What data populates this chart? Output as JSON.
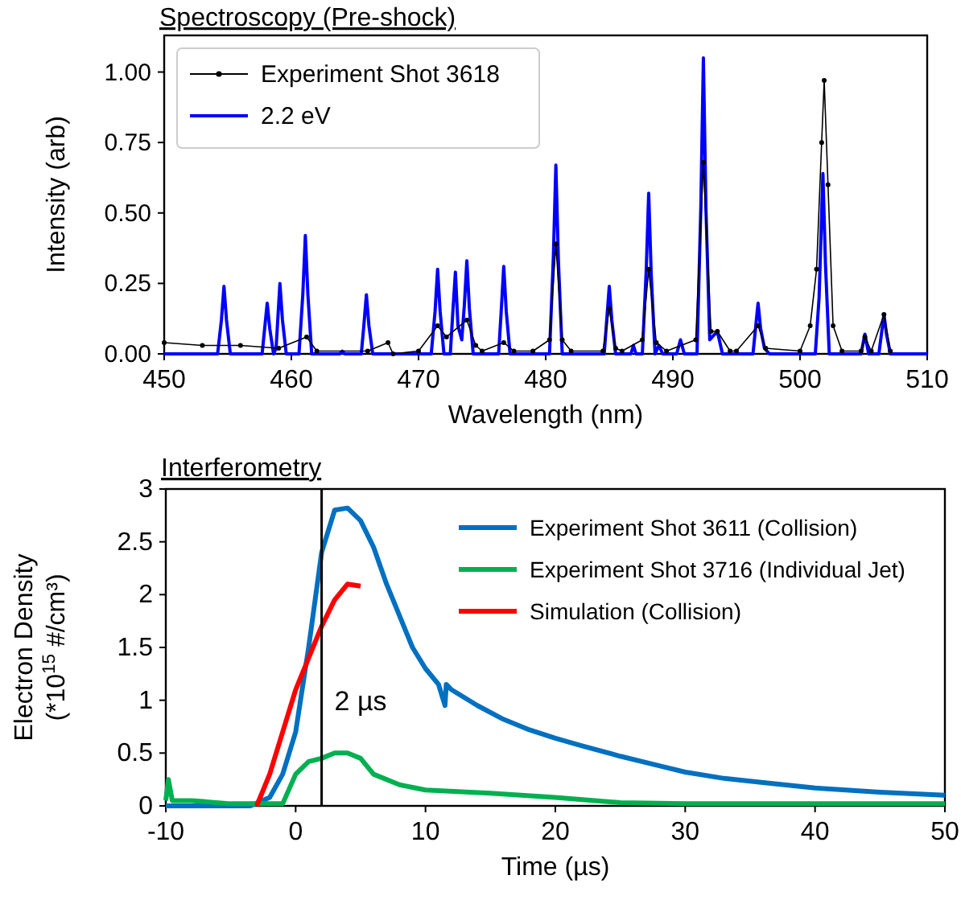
{
  "chart_data": [
    {
      "type": "line",
      "title": "Spectroscopy (Pre-shock)",
      "xlabel": "Wavelength (nm)",
      "ylabel": "Intensity (arb)",
      "xlim": [
        450,
        510
      ],
      "xticks": [
        450,
        460,
        470,
        480,
        490,
        500,
        510
      ],
      "ylim": [
        0,
        1.13
      ],
      "yticks": [
        {
          "value": 0,
          "label": "0.00"
        },
        {
          "value": 0.25,
          "label": "0.25"
        },
        {
          "value": 0.5,
          "label": "0.50"
        },
        {
          "value": 0.75,
          "label": "0.75"
        },
        {
          "value": 1,
          "label": "1.00"
        }
      ],
      "grid": false,
      "legend": "top left",
      "series": [
        {
          "name": "Experiment Shot 3618",
          "color": "#000000",
          "marker": "circle",
          "x": [
            450,
            453,
            456,
            459,
            461.2,
            462,
            466,
            467.6,
            468,
            470,
            471.5,
            472.2,
            473.8,
            474.5,
            475,
            476.7,
            477.5,
            479,
            480.3,
            480.8,
            481.3,
            482,
            484.5,
            485,
            485.5,
            486,
            487.6,
            488.1,
            488.7,
            489.5,
            491.8,
            492.4,
            493,
            493.5,
            494.5,
            495,
            496.7,
            497.3,
            500,
            500.8,
            501.3,
            501.7,
            501.9,
            502.2,
            502.6,
            503.3,
            504.8,
            505.1,
            505.6,
            506.6,
            507.1
          ],
          "values": [
            0.04,
            0.03,
            0.03,
            0.02,
            0.06,
            0.01,
            0.01,
            0.04,
            0,
            0.01,
            0.1,
            0.06,
            0.12,
            0.03,
            0.01,
            0.04,
            0.01,
            0.01,
            0.05,
            0.39,
            0.05,
            0.01,
            0.01,
            0.16,
            0.02,
            0.01,
            0.05,
            0.3,
            0.04,
            0.01,
            0.05,
            0.68,
            0.08,
            0.08,
            0.01,
            0.01,
            0.1,
            0.02,
            0.01,
            0.1,
            0.3,
            0.75,
            0.97,
            0.6,
            0.1,
            0.01,
            0.01,
            0.06,
            0.01,
            0.14,
            0.01
          ]
        },
        {
          "name": "2.2 eV",
          "color": "#0000ff",
          "marker": "none",
          "x": [
            450,
            453,
            454.2,
            454.5,
            454.7,
            454.9,
            455.2,
            457.7,
            457.9,
            458.1,
            458.3,
            458.6,
            458.8,
            459.1,
            459.3,
            459.6,
            460.6,
            460.9,
            461.1,
            461.3,
            461.6,
            463.8,
            464,
            464.2,
            465.5,
            465.7,
            465.9,
            466.1,
            466.4,
            471,
            471.3,
            471.5,
            471.7,
            472,
            472.5,
            472.7,
            472.9,
            473.1,
            473.4,
            473.6,
            473.8,
            474,
            474.3,
            476.3,
            476.5,
            476.7,
            476.9,
            477.2,
            480.3,
            480.6,
            480.8,
            481,
            481.3,
            484.6,
            484.8,
            485,
            485.2,
            485.5,
            486.7,
            486.9,
            487.1,
            487.6,
            487.9,
            488.1,
            488.3,
            488.6,
            488.9,
            489.2,
            490.3,
            490.6,
            490.9,
            491.9,
            492.2,
            492.4,
            492.6,
            492.9,
            493.5,
            493.9,
            496.3,
            496.5,
            496.7,
            496.9,
            497.2,
            497.6,
            501.2,
            501.5,
            501.8,
            502,
            502.3,
            504.8,
            505.1,
            505.4,
            506.2,
            506.4,
            506.6,
            506.8,
            507.1,
            510
          ],
          "values": [
            0,
            0,
            0,
            0.12,
            0.24,
            0.12,
            0,
            0,
            0.09,
            0.18,
            0.09,
            0,
            0.02,
            0.25,
            0.12,
            0,
            0,
            0.21,
            0.42,
            0.21,
            0,
            0,
            0.01,
            0,
            0,
            0.1,
            0.21,
            0.1,
            0,
            0,
            0.15,
            0.3,
            0.15,
            0,
            0,
            0.15,
            0.29,
            0.1,
            0.05,
            0.17,
            0.33,
            0.16,
            0,
            0,
            0.15,
            0.31,
            0.15,
            0,
            0,
            0.34,
            0.67,
            0.33,
            0,
            0,
            0.12,
            0.24,
            0.12,
            0,
            0,
            0.03,
            0,
            0,
            0.29,
            0.57,
            0.28,
            0,
            0.03,
            0,
            0,
            0.05,
            0,
            0,
            0.52,
            1.05,
            0.52,
            0.05,
            0.08,
            0,
            0,
            0.09,
            0.18,
            0.09,
            0.02,
            0,
            0,
            0.2,
            0.64,
            0.32,
            0,
            0,
            0.07,
            0,
            0,
            0.07,
            0.14,
            0.07,
            0,
            0
          ]
        }
      ]
    },
    {
      "type": "line",
      "title": "Interferometry",
      "xlabel": "Time (µs)",
      "ylabel": "Electron Density\n(*10$^{15}$ #/cm³)",
      "xlim": [
        -10,
        50
      ],
      "xticks": [
        -10,
        0,
        10,
        20,
        30,
        40,
        50
      ],
      "ylim": [
        0,
        3
      ],
      "yticks": [
        0,
        0.5,
        1,
        1.5,
        2,
        2.5,
        3
      ],
      "grid": false,
      "legend": "top right",
      "ref_lines": [
        {
          "axis": "x",
          "value": 2,
          "label": "2 µs",
          "color": "#000000"
        }
      ],
      "series": [
        {
          "name": "Experiment Shot 3611 (Collision)",
          "color": "#0070c0",
          "x": [
            -10,
            -3.5,
            -2,
            -1,
            0,
            1,
            2,
            3,
            4,
            5,
            6,
            7,
            8,
            9,
            10,
            11,
            11.5,
            11.6,
            12,
            14,
            16,
            18,
            20,
            22,
            25,
            28,
            30,
            33,
            36,
            40,
            45,
            50
          ],
          "values": [
            0,
            0,
            0.08,
            0.3,
            0.7,
            1.5,
            2.4,
            2.8,
            2.82,
            2.7,
            2.45,
            2.1,
            1.8,
            1.5,
            1.3,
            1.15,
            0.95,
            1.15,
            1.1,
            0.95,
            0.82,
            0.72,
            0.64,
            0.57,
            0.47,
            0.38,
            0.32,
            0.26,
            0.22,
            0.17,
            0.13,
            0.1
          ]
        },
        {
          "name": "Experiment Shot 3716 (Individual Jet)",
          "color": "#00b050",
          "x": [
            -10,
            -9.8,
            -9.5,
            -8,
            -5,
            -3,
            -1,
            0,
            1,
            2,
            3,
            4,
            5,
            6,
            8,
            10,
            15,
            20,
            25,
            30,
            40,
            50
          ],
          "values": [
            0.05,
            0.25,
            0.05,
            0.05,
            0.02,
            0.02,
            0.02,
            0.3,
            0.42,
            0.45,
            0.5,
            0.5,
            0.45,
            0.3,
            0.2,
            0.15,
            0.12,
            0.08,
            0.03,
            0.02,
            0.02,
            0.02
          ]
        },
        {
          "name": "Simulation (Collision)",
          "color": "#ff0000",
          "x": [
            -3,
            -2,
            -1,
            0,
            1,
            2,
            3,
            4,
            5
          ],
          "values": [
            0,
            0.3,
            0.7,
            1.1,
            1.4,
            1.7,
            1.95,
            2.1,
            2.08
          ]
        }
      ]
    }
  ]
}
